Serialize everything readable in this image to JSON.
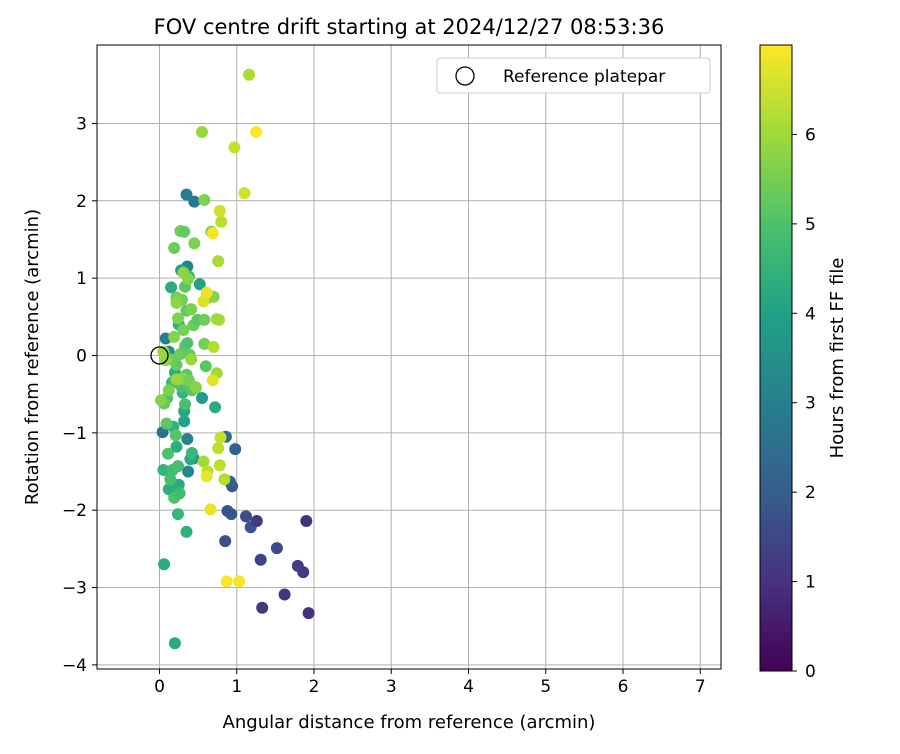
{
  "chart_data": {
    "type": "scatter",
    "title": "FOV centre drift starting at 2024/12/27 08:53:36",
    "xlabel": "Angular distance from reference (arcmin)",
    "ylabel": "Rotation from reference (arcmin)",
    "xlim": [
      -0.8,
      7.3
    ],
    "ylim": [
      -4.1,
      4.0
    ],
    "x_ticks": [
      0,
      1,
      2,
      3,
      4,
      5,
      6,
      7
    ],
    "y_ticks": [
      -4,
      -3,
      -2,
      -1,
      0,
      1,
      2,
      3
    ],
    "grid": true,
    "legend": {
      "placement": "top-right",
      "entries": [
        "Reference platepar"
      ]
    },
    "reference_point": {
      "x": 0,
      "y": 0,
      "label": "Reference platepar"
    },
    "colorbar": {
      "label": "Hours from first FF file",
      "range": [
        0,
        7
      ],
      "ticks": [
        0,
        1,
        2,
        3,
        4,
        5,
        6
      ],
      "colormap": "viridis"
    },
    "points": [
      {
        "x": 1.93,
        "y": -3.33,
        "h": 1.0
      },
      {
        "x": 1.33,
        "y": -3.26,
        "h": 1.1
      },
      {
        "x": 1.62,
        "y": -3.09,
        "h": 1.1
      },
      {
        "x": 1.86,
        "y": -2.8,
        "h": 1.2
      },
      {
        "x": 1.79,
        "y": -2.72,
        "h": 1.3
      },
      {
        "x": 1.31,
        "y": -2.64,
        "h": 1.4
      },
      {
        "x": 1.52,
        "y": -2.49,
        "h": 1.5
      },
      {
        "x": 0.85,
        "y": -2.4,
        "h": 1.7
      },
      {
        "x": 1.18,
        "y": -2.22,
        "h": 1.8
      },
      {
        "x": 1.9,
        "y": -2.14,
        "h": 1.0
      },
      {
        "x": 1.26,
        "y": -2.14,
        "h": 1.2
      },
      {
        "x": 1.12,
        "y": -2.08,
        "h": 1.6
      },
      {
        "x": 0.93,
        "y": -2.05,
        "h": 1.9
      },
      {
        "x": 0.88,
        "y": -2.01,
        "h": 1.8
      },
      {
        "x": 0.94,
        "y": -1.69,
        "h": 2.0
      },
      {
        "x": 0.91,
        "y": -1.63,
        "h": 2.1
      },
      {
        "x": 0.98,
        "y": -1.21,
        "h": 2.2
      },
      {
        "x": 0.86,
        "y": -1.05,
        "h": 2.4
      },
      {
        "x": 0.04,
        "y": -0.99,
        "h": 2.6
      },
      {
        "x": 0.35,
        "y": 2.08,
        "h": 3.0
      },
      {
        "x": 0.45,
        "y": 1.99,
        "h": 2.8
      },
      {
        "x": 0.36,
        "y": 1.15,
        "h": 3.2
      },
      {
        "x": 0.08,
        "y": 0.22,
        "h": 3.0
      },
      {
        "x": 0.36,
        "y": -1.08,
        "h": 3.1
      },
      {
        "x": 0.37,
        "y": -1.5,
        "h": 3.3
      },
      {
        "x": 0.44,
        "y": -1.33,
        "h": 3.4
      },
      {
        "x": 0.12,
        "y": 0.05,
        "h": 3.5
      },
      {
        "x": 0.06,
        "y": -2.7,
        "h": 4.3
      },
      {
        "x": 0.2,
        "y": -3.72,
        "h": 4.2
      },
      {
        "x": 0.35,
        "y": -2.28,
        "h": 4.5
      },
      {
        "x": 0.05,
        "y": -1.48,
        "h": 4.6
      },
      {
        "x": 0.12,
        "y": -1.73,
        "h": 4.4
      },
      {
        "x": 0.25,
        "y": -1.67,
        "h": 4.3
      },
      {
        "x": 0.4,
        "y": -1.34,
        "h": 4.2
      },
      {
        "x": 0.22,
        "y": -1.18,
        "h": 4.4
      },
      {
        "x": 0.18,
        "y": -0.92,
        "h": 4.5
      },
      {
        "x": 0.32,
        "y": -0.85,
        "h": 4.0
      },
      {
        "x": 0.72,
        "y": -0.67,
        "h": 4.3
      },
      {
        "x": 0.55,
        "y": -0.55,
        "h": 3.8
      },
      {
        "x": 0.32,
        "y": -0.72,
        "h": 4.2
      },
      {
        "x": 0.3,
        "y": -0.48,
        "h": 4.6
      },
      {
        "x": 0.2,
        "y": -0.22,
        "h": 4.4
      },
      {
        "x": 0.25,
        "y": 0.4,
        "h": 4.5
      },
      {
        "x": 0.15,
        "y": 0.88,
        "h": 4.3
      },
      {
        "x": 0.28,
        "y": 1.1,
        "h": 4.0
      },
      {
        "x": 0.52,
        "y": 0.92,
        "h": 4.0
      },
      {
        "x": 0.38,
        "y": 1.02,
        "h": 4.6
      },
      {
        "x": 0.42,
        "y": -1.26,
        "h": 4.7
      },
      {
        "x": 0.17,
        "y": -1.48,
        "h": 4.8
      },
      {
        "x": 0.19,
        "y": -1.84,
        "h": 5.0
      },
      {
        "x": 0.24,
        "y": -2.05,
        "h": 4.7
      },
      {
        "x": 0.26,
        "y": -1.78,
        "h": 4.8
      },
      {
        "x": 0.14,
        "y": -1.6,
        "h": 4.9
      },
      {
        "x": 0.24,
        "y": -1.43,
        "h": 4.9
      },
      {
        "x": 0.11,
        "y": -1.27,
        "h": 5.0
      },
      {
        "x": 0.21,
        "y": -1.03,
        "h": 5.1
      },
      {
        "x": 0.09,
        "y": -0.88,
        "h": 5.2
      },
      {
        "x": 0.33,
        "y": -0.63,
        "h": 4.9
      },
      {
        "x": 0.28,
        "y": -0.4,
        "h": 5.0
      },
      {
        "x": 0.16,
        "y": -0.35,
        "h": 4.8
      },
      {
        "x": 0.1,
        "y": -0.55,
        "h": 5.0
      },
      {
        "x": 0.06,
        "y": -0.62,
        "h": 5.3
      },
      {
        "x": 0.42,
        "y": -0.45,
        "h": 5.1
      },
      {
        "x": 0.47,
        "y": -0.42,
        "h": 5.3
      },
      {
        "x": 0.6,
        "y": -0.14,
        "h": 5.2
      },
      {
        "x": 0.35,
        "y": -0.25,
        "h": 5.2
      },
      {
        "x": 0.22,
        "y": -0.12,
        "h": 5.3
      },
      {
        "x": 0.15,
        "y": -0.05,
        "h": 5.4
      },
      {
        "x": 0.27,
        "y": 0.02,
        "h": 5.4
      },
      {
        "x": 0.33,
        "y": 0.12,
        "h": 5.2
      },
      {
        "x": 0.36,
        "y": 0.16,
        "h": 5.0
      },
      {
        "x": 0.39,
        "y": 0.01,
        "h": 5.3
      },
      {
        "x": 0.31,
        "y": 0.33,
        "h": 5.5
      },
      {
        "x": 0.44,
        "y": 0.39,
        "h": 5.4
      },
      {
        "x": 0.49,
        "y": 0.46,
        "h": 5.2
      },
      {
        "x": 0.58,
        "y": 0.15,
        "h": 5.5
      },
      {
        "x": 0.24,
        "y": 0.48,
        "h": 5.6
      },
      {
        "x": 0.35,
        "y": 0.58,
        "h": 5.3
      },
      {
        "x": 0.29,
        "y": 0.72,
        "h": 5.4
      },
      {
        "x": 0.22,
        "y": 0.75,
        "h": 5.5
      },
      {
        "x": 0.33,
        "y": 0.89,
        "h": 5.2
      },
      {
        "x": 0.41,
        "y": 0.6,
        "h": 5.6
      },
      {
        "x": 0.61,
        "y": 0.74,
        "h": 5.3
      },
      {
        "x": 0.7,
        "y": 0.76,
        "h": 5.7
      },
      {
        "x": 0.58,
        "y": 0.46,
        "h": 5.4
      },
      {
        "x": 0.19,
        "y": 1.39,
        "h": 5.4
      },
      {
        "x": 0.45,
        "y": 1.45,
        "h": 5.6
      },
      {
        "x": 0.27,
        "y": 1.61,
        "h": 5.5
      },
      {
        "x": 0.32,
        "y": 1.6,
        "h": 5.3
      },
      {
        "x": 0.67,
        "y": 1.6,
        "h": 5.6
      },
      {
        "x": 0.58,
        "y": 2.01,
        "h": 5.6
      },
      {
        "x": 0.31,
        "y": 1.07,
        "h": 5.8
      },
      {
        "x": 0.37,
        "y": 0.99,
        "h": 5.7
      },
      {
        "x": 0.22,
        "y": 0.68,
        "h": 5.8
      },
      {
        "x": 0.19,
        "y": 0.24,
        "h": 5.7
      },
      {
        "x": 0.08,
        "y": -0.06,
        "h": 5.8
      },
      {
        "x": 0.12,
        "y": -0.45,
        "h": 5.6
      },
      {
        "x": 0.02,
        "y": -0.58,
        "h": 5.7
      },
      {
        "x": 0.05,
        "y": 0.05,
        "h": 5.9
      },
      {
        "x": 0.3,
        "y": -0.3,
        "h": 5.8
      },
      {
        "x": 0.38,
        "y": -0.32,
        "h": 5.5
      },
      {
        "x": 0.22,
        "y": -0.31,
        "h": 5.9
      },
      {
        "x": 0.47,
        "y": -0.41,
        "h": 5.7
      },
      {
        "x": 0.41,
        "y": -0.05,
        "h": 5.9
      },
      {
        "x": 0.55,
        "y": 2.89,
        "h": 5.9
      },
      {
        "x": 0.77,
        "y": 0.46,
        "h": 6.1
      },
      {
        "x": 0.74,
        "y": 0.47,
        "h": 6.0
      },
      {
        "x": 0.7,
        "y": 0.11,
        "h": 6.2
      },
      {
        "x": 0.74,
        "y": -0.23,
        "h": 6.0
      },
      {
        "x": 0.57,
        "y": -1.37,
        "h": 6.0
      },
      {
        "x": 0.62,
        "y": -1.5,
        "h": 6.2
      },
      {
        "x": 0.76,
        "y": -1.2,
        "h": 6.3
      },
      {
        "x": 0.79,
        "y": -1.06,
        "h": 6.4
      },
      {
        "x": 0.78,
        "y": -1.42,
        "h": 6.3
      },
      {
        "x": 0.84,
        "y": -1.6,
        "h": 6.2
      },
      {
        "x": 0.8,
        "y": 1.73,
        "h": 6.3
      },
      {
        "x": 0.78,
        "y": 1.87,
        "h": 6.5
      },
      {
        "x": 0.76,
        "y": 1.22,
        "h": 6.1
      },
      {
        "x": 0.97,
        "y": 2.69,
        "h": 6.4
      },
      {
        "x": 1.1,
        "y": 2.1,
        "h": 6.5
      },
      {
        "x": 1.16,
        "y": 3.63,
        "h": 6.1
      },
      {
        "x": 0.57,
        "y": 0.7,
        "h": 6.6
      },
      {
        "x": 0.61,
        "y": 0.81,
        "h": 6.8
      },
      {
        "x": 0.69,
        "y": 1.58,
        "h": 6.9
      },
      {
        "x": 0.69,
        "y": -0.32,
        "h": 6.7
      },
      {
        "x": 0.61,
        "y": -1.56,
        "h": 6.8
      },
      {
        "x": 0.66,
        "y": -1.99,
        "h": 6.8
      },
      {
        "x": 0.87,
        "y": -2.92,
        "h": 7.0
      },
      {
        "x": 1.03,
        "y": -2.92,
        "h": 6.9
      },
      {
        "x": 1.25,
        "y": 2.89,
        "h": 7.0
      }
    ]
  }
}
